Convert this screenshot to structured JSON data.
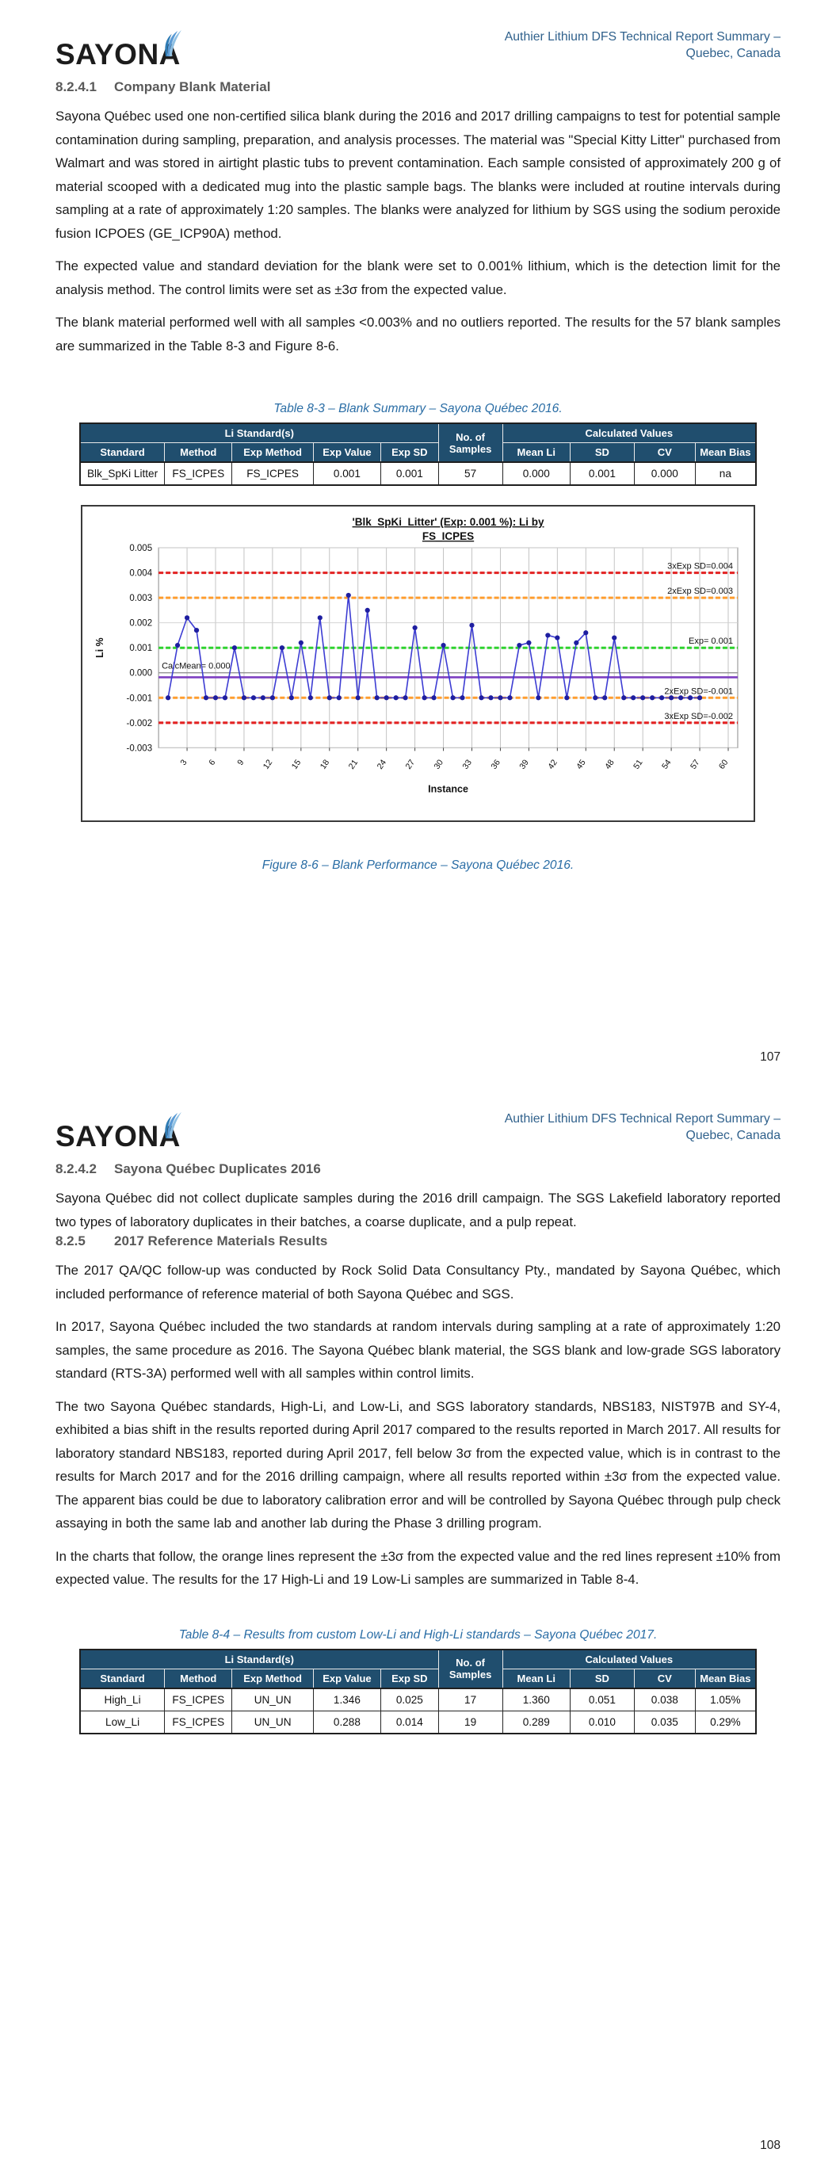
{
  "brand": {
    "logo_text": "SAYONA"
  },
  "header": {
    "title_line1": "Authier Lithium DFS Technical Report Summary –",
    "title_line2": "Quebec, Canada"
  },
  "page1": {
    "page_number": "107",
    "section": {
      "number": "8.2.4.1",
      "title": "Company Blank Material"
    },
    "paragraphs": [
      "Sayona Québec used one non-certified silica blank during the 2016 and 2017 drilling campaigns to test for potential sample contamination during sampling, preparation, and analysis processes.  The material was \"Special Kitty Litter\" purchased from Walmart and was stored in airtight plastic tubs to prevent contamination.  Each sample consisted of approximately 200 g of material scooped with a dedicated mug into the plastic sample bags.  The blanks were included at routine intervals during sampling at a rate of approximately 1:20 samples.  The blanks were analyzed for lithium by SGS using the sodium peroxide fusion ICPOES (GE_ICP90A) method.",
      "The expected value and standard deviation for the blank were set to 0.001% lithium, which is the detection limit for the analysis method.  The control limits were set as ±3σ from the expected value.",
      "The blank material performed well with all samples <0.003% and no outliers reported.  The results for the 57 blank samples are summarized in the Table 8-3 and Figure 8-6."
    ],
    "table_caption": "Table 8-3 – Blank Summary – Sayona Québec 2016.",
    "figure_caption": "Figure 8-6 – Blank Performance – Sayona Québec 2016."
  },
  "page2": {
    "page_number": "108",
    "section_8242": {
      "number": "8.2.4.2",
      "title": "Sayona Québec Duplicates 2016"
    },
    "para_8242": "Sayona Québec did not collect duplicate samples during the 2016 drill campaign.  The SGS Lakefield laboratory reported two types of laboratory duplicates in their batches, a coarse duplicate, and a pulp repeat.",
    "section_825": {
      "number": "8.2.5",
      "title": "2017 Reference Materials Results"
    },
    "paragraphs_825": [
      "The 2017 QA/QC follow-up was conducted by Rock Solid Data Consultancy Pty., mandated by Sayona Québec, which included performance of reference material of both Sayona Québec and SGS.",
      "In 2017, Sayona Québec included the two standards at random intervals during sampling at a rate of approximately 1:20 samples, the same procedure as 2016.  The Sayona Québec blank material, the SGS blank and low-grade SGS laboratory standard (RTS-3A) performed well with all samples within control limits.",
      "The two Sayona Québec standards, High-Li, and Low-Li, and SGS laboratory standards, NBS183, NIST97B and SY-4, exhibited a bias shift in the results reported during April 2017 compared to the results reported in March 2017.  All results for laboratory standard NBS183, reported during April 2017, fell below 3σ from the expected value, which is in contrast to the results for March 2017 and for the 2016 drilling campaign, where all results reported within ±3σ from the expected value.  The apparent bias could be due to laboratory calibration error and will be controlled by Sayona Québec through pulp check assaying in both the same lab and another lab during the Phase 3 drilling program.",
      "In the charts that follow, the orange lines represent the ±3σ from the expected value and the red lines represent ±10% from expected value.  The results for the 17 High-Li and 19 Low-Li samples are summarized in Table 8-4."
    ],
    "table_caption": "Table 8-4 – Results from custom Low-Li and High-Li standards – Sayona Québec 2017."
  },
  "tables": {
    "header_bg": "#204e6e",
    "header": {
      "group1": "Li Standard(s)",
      "group2": "No. of Samples",
      "group3": "Calculated Values",
      "cols_left": [
        "Standard",
        "Method",
        "Exp Method",
        "Exp Value",
        "Exp SD"
      ],
      "cols_right": [
        "Mean Li",
        "SD",
        "CV",
        "Mean Bias"
      ]
    },
    "table_8_3_rows": [
      [
        "Blk_SpKi Litter",
        "FS_ICPES",
        "FS_ICPES",
        "0.001",
        "0.001",
        "57",
        "0.000",
        "0.001",
        "0.000",
        "na"
      ]
    ],
    "table_8_4_rows": [
      [
        "High_Li",
        "FS_ICPES",
        "UN_UN",
        "1.346",
        "0.025",
        "17",
        "1.360",
        "0.051",
        "0.038",
        "1.05%"
      ],
      [
        "Low_Li",
        "FS_ICPES",
        "UN_UN",
        "0.288",
        "0.014",
        "19",
        "0.289",
        "0.010",
        "0.035",
        "0.29%"
      ]
    ]
  },
  "chart_data": {
    "type": "line",
    "title": "'Blk_SpKi_Litter' (Exp: 0.001 %): Li by",
    "subtitle": "FS_ICPES",
    "xlabel": "Instance",
    "ylabel": "Li %",
    "ylim": [
      -0.003,
      0.005
    ],
    "ytick_step": 0.001,
    "xlim": [
      0,
      61
    ],
    "xticks": [
      3,
      6,
      9,
      12,
      15,
      18,
      21,
      24,
      27,
      30,
      33,
      36,
      39,
      42,
      45,
      48,
      51,
      54,
      57,
      60
    ],
    "grid": true,
    "legend_position": "none",
    "series": [
      {
        "name": "Li %",
        "color": "#3d3dd3",
        "marker_color": "#1e1ea0",
        "x_start": 1,
        "values": [
          -0.001,
          0.0011,
          0.0022,
          0.0017,
          -0.001,
          -0.001,
          -0.001,
          0.001,
          -0.001,
          -0.001,
          -0.001,
          -0.001,
          0.001,
          -0.001,
          0.0012,
          -0.001,
          0.0022,
          -0.001,
          -0.001,
          0.0031,
          -0.001,
          0.0025,
          -0.001,
          -0.001,
          -0.001,
          -0.001,
          0.0018,
          -0.001,
          -0.001,
          0.0011,
          -0.001,
          -0.001,
          0.0019,
          -0.001,
          -0.001,
          -0.001,
          -0.001,
          0.0011,
          0.0012,
          -0.001,
          0.0015,
          0.0014,
          -0.001,
          0.0012,
          0.0016,
          -0.001,
          -0.001,
          0.0014,
          -0.001,
          -0.001,
          -0.001,
          -0.001,
          -0.001,
          -0.001,
          -0.001,
          -0.001,
          -0.001
        ]
      }
    ],
    "ref_lines": [
      {
        "label": "3xExp SD=0.004",
        "value": 0.004,
        "color": "#e32222",
        "dash": true
      },
      {
        "label": "2xExp SD=0.003",
        "value": 0.003,
        "color": "#ff9d2e",
        "dash": true
      },
      {
        "label": "Exp= 0.001",
        "value": 0.001,
        "color": "#2ed32e",
        "dash": true
      },
      {
        "label": "CalcMean= 0.000",
        "value": 0,
        "color": "#8a8a8a",
        "dash": false,
        "label_side": "left",
        "width": 1.2
      },
      {
        "label": "",
        "value": -0.00018,
        "color": "#7d3fc1",
        "dash": false,
        "width": 2.6
      },
      {
        "label": "2xExp SD=-0.001",
        "value": -0.001,
        "color": "#ff9d2e",
        "dash": true
      },
      {
        "label": "3xExp SD=-0.002",
        "value": -0.002,
        "color": "#e32222",
        "dash": true
      }
    ]
  }
}
